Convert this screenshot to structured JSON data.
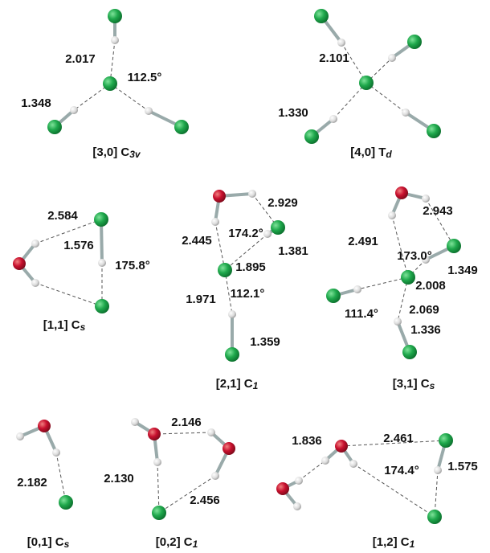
{
  "structures": [
    {
      "label": {
        "base": "[3,0] C",
        "sub": "3v"
      },
      "values": [
        "2.017",
        "112.5°",
        "1.348"
      ]
    },
    {
      "label": {
        "base": "[4,0] T",
        "sub": "d"
      },
      "values": [
        "2.101",
        "1.330"
      ]
    },
    {
      "label": {
        "base": "[1,1] C",
        "sub": "s"
      },
      "values": [
        "2.584",
        "1.576",
        "175.8°"
      ]
    },
    {
      "label": {
        "base": "[2,1] C",
        "sub": "1"
      },
      "values": [
        "2.929",
        "2.445",
        "174.2°",
        "1.381",
        "1.895",
        "1.971",
        "112.1°",
        "1.359"
      ]
    },
    {
      "label": {
        "base": "[3,1] C",
        "sub": "s"
      },
      "values": [
        "2.943",
        "2.491",
        "173.0°",
        "1.349",
        "2.008",
        "111.4°",
        "2.069",
        "1.336"
      ]
    },
    {
      "label": {
        "base": "[0,1] C",
        "sub": "s"
      },
      "values": [
        "2.182"
      ]
    },
    {
      "label": {
        "base": "[0,2] C",
        "sub": "1"
      },
      "values": [
        "2.146",
        "2.130",
        "2.456"
      ]
    },
    {
      "label": {
        "base": "[1,2] C",
        "sub": "1"
      },
      "values": [
        "1.836",
        "2.461",
        "174.4°",
        "1.575"
      ]
    }
  ]
}
